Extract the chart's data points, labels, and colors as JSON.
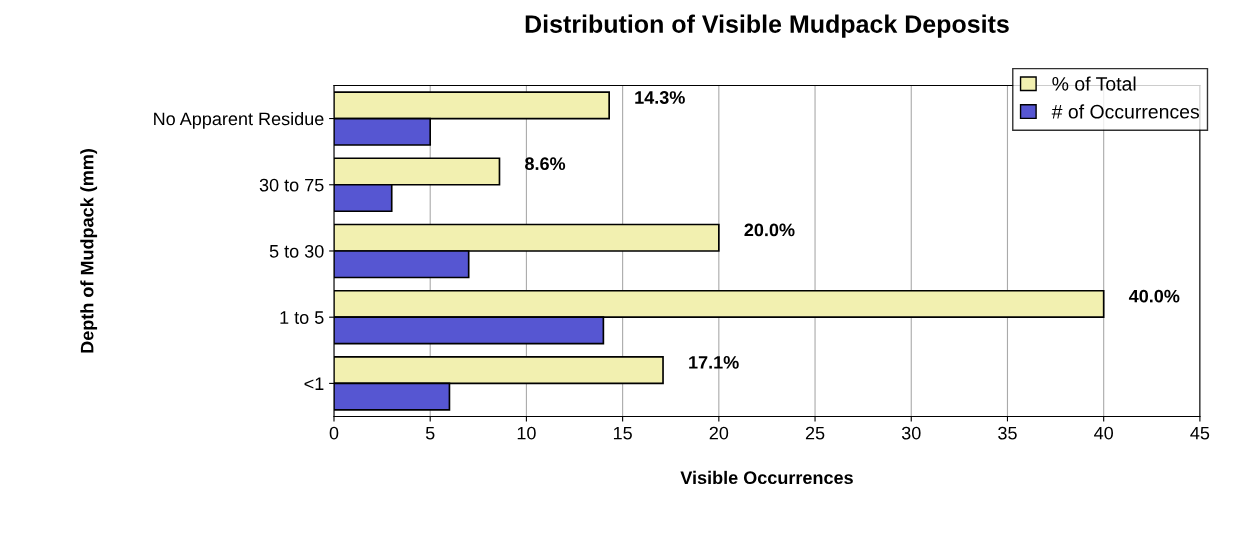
{
  "chart_data": {
    "type": "bar",
    "orientation": "horizontal",
    "title": "Distribution of Visible Mudpack Deposits",
    "xlabel": "Visible Occurrences",
    "ylabel": "Depth of Mudpack (mm)",
    "categories": [
      "No Apparent Residue",
      "30 to 75",
      "5 to 30",
      "1 to 5",
      "<1"
    ],
    "series": [
      {
        "name": "% of Total",
        "color": "#f2f0b0",
        "values": [
          14.3,
          8.6,
          20.0,
          40.0,
          17.1
        ],
        "value_labels": [
          "14.3%",
          "8.6%",
          "20.0%",
          "40.0%",
          "17.1%"
        ]
      },
      {
        "name": "# of Occurrences",
        "color": "#5656d2",
        "values": [
          5,
          3,
          7,
          14,
          6
        ]
      }
    ],
    "xlim": [
      0,
      45
    ],
    "xticks": [
      0,
      5,
      10,
      15,
      20,
      25,
      30,
      35,
      40,
      45
    ],
    "grid": "x",
    "legend": "top right"
  }
}
